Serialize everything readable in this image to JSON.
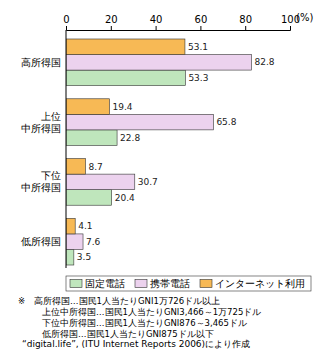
{
  "chart_data": {
    "type": "bar",
    "orientation": "horizontal",
    "xlabel": "(%)",
    "categories": [
      "高所得国",
      "上位\n中所得国",
      "下位\n中所得国",
      "低所得国"
    ],
    "series": [
      {
        "name": "固定電話",
        "color": "#bfe6bc",
        "values": [
          53.3,
          22.8,
          20.4,
          3.5
        ]
      },
      {
        "name": "携帯電話",
        "color": "#ecd2ee",
        "values": [
          82.8,
          65.8,
          30.7,
          7.6
        ]
      },
      {
        "name": "インターネット利用",
        "color": "#f7b955",
        "values": [
          53.1,
          19.4,
          8.7,
          4.1
        ]
      }
    ],
    "xlim": [
      0,
      100
    ],
    "xticks": [
      0,
      20,
      40,
      60,
      80,
      100
    ],
    "grid": false,
    "data_labels": true,
    "legend": "bottom",
    "annotations": [
      "※　高所得国…国民1人当たりGNI1万726ドル以上",
      "上位中所得国…国民1人当たりGNI3,466～1万725ドル",
      "下位中所得国…国民1人当たりGNI876～3,465ドル",
      "低所得国…国民1人当たりGNI875ドル以下",
      "“digital.life”, (ITU Internet Reports 2006)により作成"
    ]
  }
}
